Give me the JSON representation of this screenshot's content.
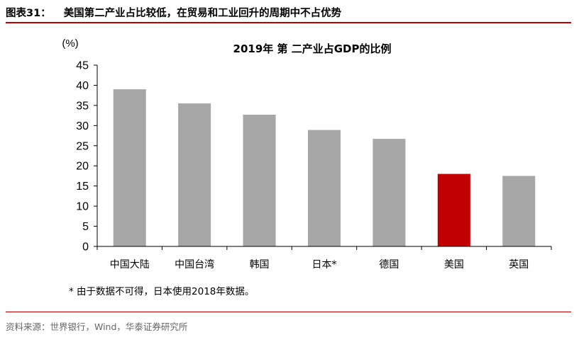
{
  "header": {
    "figure_label": "图表31：",
    "figure_title": "美国第二产业占比较低，在贸易和工业回升的周期中不占优势"
  },
  "footer": {
    "source": "资料来源：世界银行，Wind，华泰证券研究所"
  },
  "chart_data": {
    "type": "bar",
    "title": "2019年 第 二产业占GDP的比例",
    "ylabel": "(%)",
    "xlabel": "",
    "categories": [
      "中国大陆",
      "中国台湾",
      "韩国",
      "日本*",
      "德国",
      "美国",
      "英国"
    ],
    "values": [
      39.0,
      35.5,
      32.7,
      28.9,
      26.7,
      18.0,
      17.5
    ],
    "yticks": [
      0,
      5,
      10,
      15,
      20,
      25,
      30,
      35,
      40,
      45
    ],
    "ylim": [
      0,
      45
    ],
    "grid": false,
    "legend": "none",
    "bar_color": "#a6a6a6",
    "highlight_color": "#c00000",
    "highlight_index": 5,
    "note": "* 由于数据不可得，日本使用2018年数据。"
  }
}
